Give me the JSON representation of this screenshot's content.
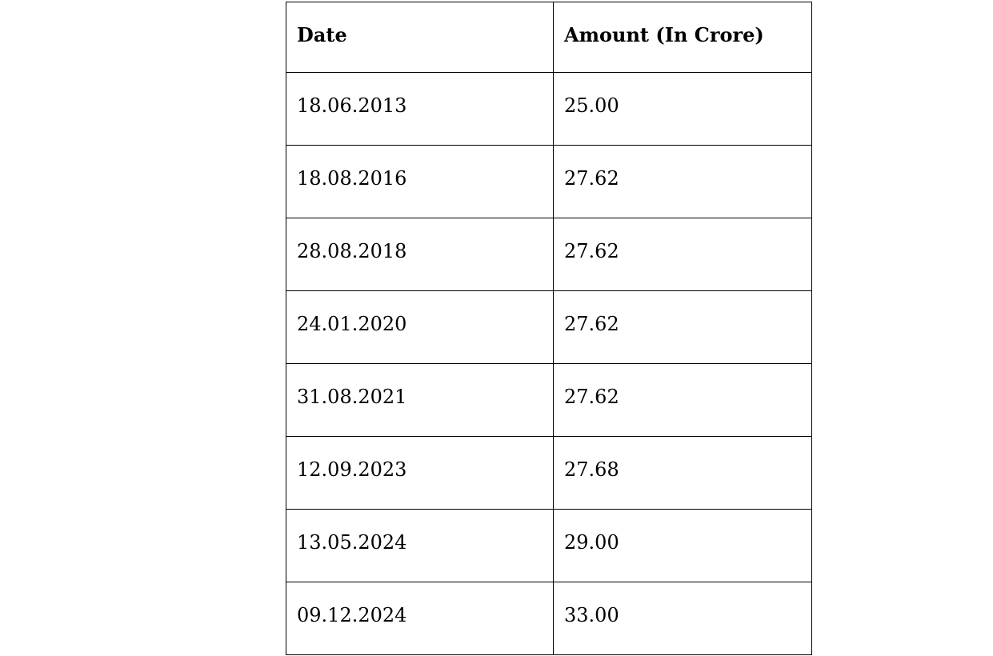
{
  "table": {
    "headers": [
      "Date",
      "Amount (In Crore)"
    ],
    "rows": [
      [
        "18.06.2013",
        "25.00"
      ],
      [
        "18.08.2016",
        "27.62"
      ],
      [
        "28.08.2018",
        "27.62"
      ],
      [
        "24.01.2020",
        "27.62"
      ],
      [
        "31.08.2021",
        "27.62"
      ],
      [
        "12.09.2023",
        "27.68"
      ],
      [
        "13.05.2024",
        "29.00"
      ],
      [
        "09.12.2024",
        "33.00"
      ]
    ]
  },
  "chart_data": {
    "type": "table",
    "columns": [
      "Date",
      "Amount (In Crore)"
    ],
    "rows": [
      {
        "date": "18.06.2013",
        "amount_in_crore": 25.0
      },
      {
        "date": "18.08.2016",
        "amount_in_crore": 27.62
      },
      {
        "date": "28.08.2018",
        "amount_in_crore": 27.62
      },
      {
        "date": "24.01.2020",
        "amount_in_crore": 27.62
      },
      {
        "date": "31.08.2021",
        "amount_in_crore": 27.62
      },
      {
        "date": "12.09.2023",
        "amount_in_crore": 27.68
      },
      {
        "date": "13.05.2024",
        "amount_in_crore": 29.0
      },
      {
        "date": "09.12.2024",
        "amount_in_crore": 33.0
      }
    ],
    "title": "",
    "legend": false,
    "grid": true
  },
  "colors": {
    "background": "#ffffff",
    "border": "#000000",
    "text": "#000000"
  }
}
